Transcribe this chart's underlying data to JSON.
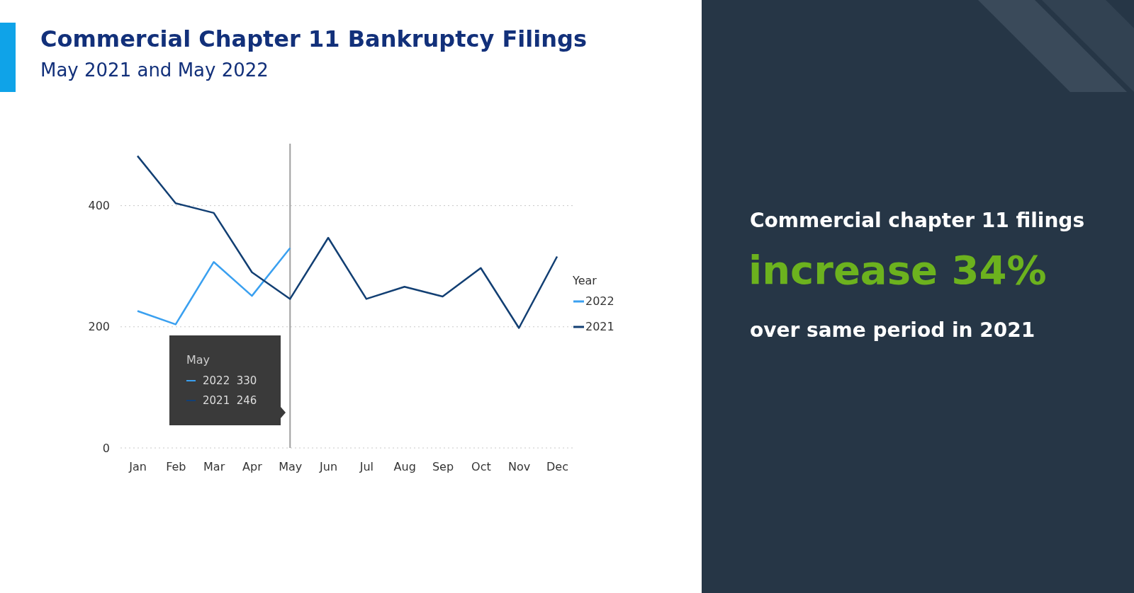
{
  "chart_data": {
    "type": "line",
    "title": "Commercial Chapter 11 Bankruptcy Filings",
    "subtitle": "May 2021 and May 2022",
    "categories": [
      "Jan",
      "Feb",
      "Mar",
      "Apr",
      "May",
      "Jun",
      "Jul",
      "Aug",
      "Sep",
      "Oct",
      "Nov",
      "Dec"
    ],
    "series": [
      {
        "name": "2022",
        "color": "#3aa0f0",
        "values": [
          226,
          204,
          307,
          251,
          330,
          null,
          null,
          null,
          null,
          null,
          null,
          null
        ]
      },
      {
        "name": "2021",
        "color": "#123f73",
        "values": [
          482,
          404,
          388,
          290,
          246,
          347,
          246,
          266,
          250,
          297,
          198,
          316
        ]
      }
    ],
    "ylim": [
      0,
      500
    ],
    "yticks": [
      0,
      200,
      400
    ],
    "grid": "y",
    "legend": "right",
    "legend_title": "Year",
    "ref_lines": [
      {
        "axis": "x",
        "value": "May",
        "color": "#a0a0a0"
      }
    ],
    "annotations": [
      "Commercial chapter 11 filings",
      "increase 34%",
      "over same period in 2021",
      "May",
      "2022  330",
      "2021  246"
    ]
  }
}
